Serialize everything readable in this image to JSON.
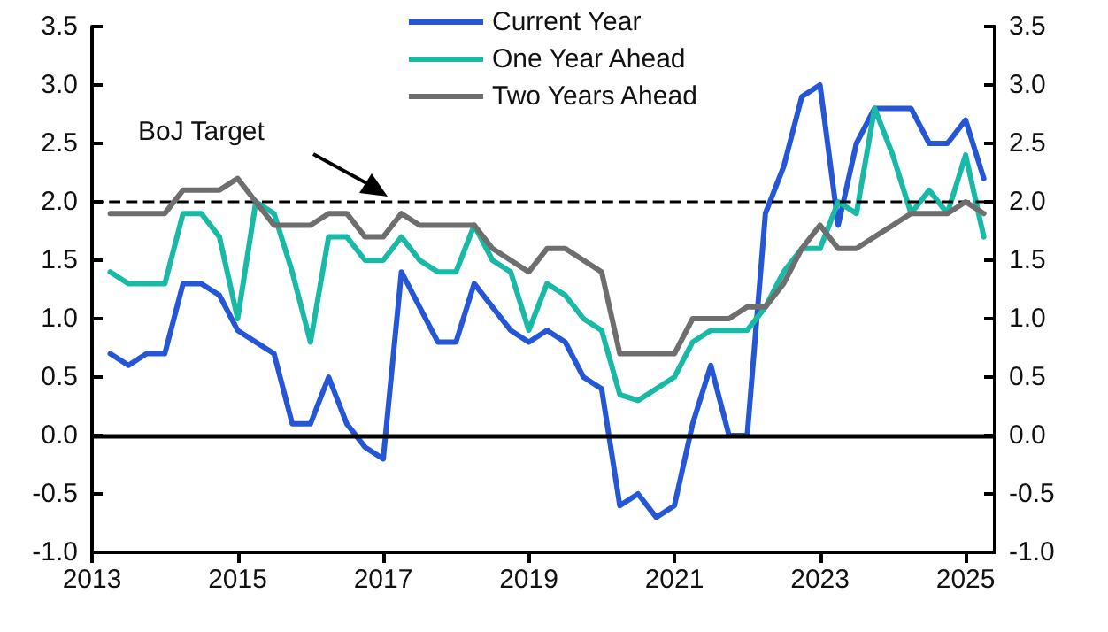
{
  "chart_data": {
    "type": "line",
    "x": [
      2013.25,
      2013.5,
      2013.75,
      2014,
      2014.25,
      2014.5,
      2014.75,
      2015,
      2015.25,
      2015.5,
      2015.75,
      2016,
      2016.25,
      2016.5,
      2016.75,
      2017,
      2017.25,
      2017.5,
      2017.75,
      2018,
      2018.25,
      2018.5,
      2018.75,
      2019,
      2019.25,
      2019.5,
      2019.75,
      2020,
      2020.25,
      2020.5,
      2020.75,
      2021,
      2021.25,
      2021.5,
      2021.75,
      2022,
      2022.25,
      2022.5,
      2022.75,
      2023,
      2023.25,
      2023.5,
      2023.75,
      2024,
      2024.25,
      2024.5,
      2024.75,
      2025,
      2025.25
    ],
    "series": [
      {
        "name": "Current Year",
        "color": "#2456d6",
        "values": [
          0.7,
          0.6,
          0.7,
          0.7,
          1.3,
          1.3,
          1.2,
          0.9,
          0.8,
          0.7,
          0.1,
          0.1,
          0.5,
          0.1,
          -0.1,
          -0.2,
          1.4,
          1.1,
          0.8,
          0.8,
          1.3,
          1.1,
          0.9,
          0.8,
          0.9,
          0.8,
          0.5,
          0.4,
          -0.6,
          -0.5,
          -0.7,
          -0.6,
          0.1,
          0.6,
          0,
          0,
          1.9,
          2.3,
          2.9,
          3.0,
          1.8,
          2.5,
          2.8,
          2.8,
          2.8,
          2.5,
          2.5,
          2.7,
          2.2
        ]
      },
      {
        "name": "One Year Ahead",
        "color": "#19b9a6",
        "values": [
          1.4,
          1.3,
          1.3,
          1.3,
          1.9,
          1.9,
          1.7,
          1.0,
          2.0,
          1.9,
          1.4,
          0.8,
          1.7,
          1.7,
          1.5,
          1.5,
          1.7,
          1.5,
          1.4,
          1.4,
          1.8,
          1.5,
          1.4,
          0.9,
          1.3,
          1.2,
          1.0,
          0.9,
          0.35,
          0.3,
          0.4,
          0.5,
          0.8,
          0.9,
          0.9,
          0.9,
          1.1,
          1.4,
          1.6,
          1.6,
          2.0,
          1.9,
          2.8,
          2.4,
          1.9,
          2.1,
          1.9,
          2.4,
          1.7
        ]
      },
      {
        "name": "Two Years Ahead",
        "color": "#6e6e6e",
        "values": [
          1.9,
          1.9,
          1.9,
          1.9,
          2.1,
          2.1,
          2.1,
          2.2,
          2.0,
          1.8,
          1.8,
          1.8,
          1.9,
          1.9,
          1.7,
          1.7,
          1.9,
          1.8,
          1.8,
          1.8,
          1.8,
          1.6,
          1.5,
          1.4,
          1.6,
          1.6,
          1.5,
          1.4,
          0.7,
          0.7,
          0.7,
          0.7,
          1.0,
          1.0,
          1.0,
          1.1,
          1.1,
          1.3,
          1.6,
          1.8,
          1.6,
          1.6,
          1.7,
          1.8,
          1.9,
          1.9,
          1.9,
          2.0,
          1.9
        ]
      }
    ],
    "xlim": [
      2013,
      2025.4
    ],
    "xticks": [
      2013,
      2015,
      2017,
      2019,
      2021,
      2023,
      2025
    ],
    "ylim": [
      -1,
      3.5
    ],
    "yticks": [
      {
        "value": -1,
        "label": "-1.0"
      },
      -0.5,
      {
        "value": 0,
        "label": "0.0"
      },
      0.5,
      {
        "value": 1,
        "label": "1.0"
      },
      1.5,
      {
        "value": 2,
        "label": "2.0"
      },
      2.5,
      {
        "value": 3,
        "label": "3.0"
      },
      3.5
    ],
    "y2lim": [
      -1,
      3.5
    ],
    "y2ticks": [
      {
        "value": -1,
        "label": "-1.0"
      },
      -0.5,
      {
        "value": 0,
        "label": "0.0"
      },
      0.5,
      {
        "value": 1,
        "label": "1.0"
      },
      1.5,
      {
        "value": 2,
        "label": "2.0"
      },
      2.5,
      {
        "value": 3,
        "label": "3.0"
      },
      3.5
    ],
    "ref_lines": [
      {
        "axis": "y",
        "value": 2,
        "label": "BoJ Target",
        "line_style": "dashed",
        "color": "#000000"
      },
      {
        "axis": "y",
        "value": 0,
        "line_style": "solid",
        "color": "#000000"
      }
    ],
    "legend": "top",
    "grid": false,
    "marker": "none",
    "line_style": "solid"
  }
}
